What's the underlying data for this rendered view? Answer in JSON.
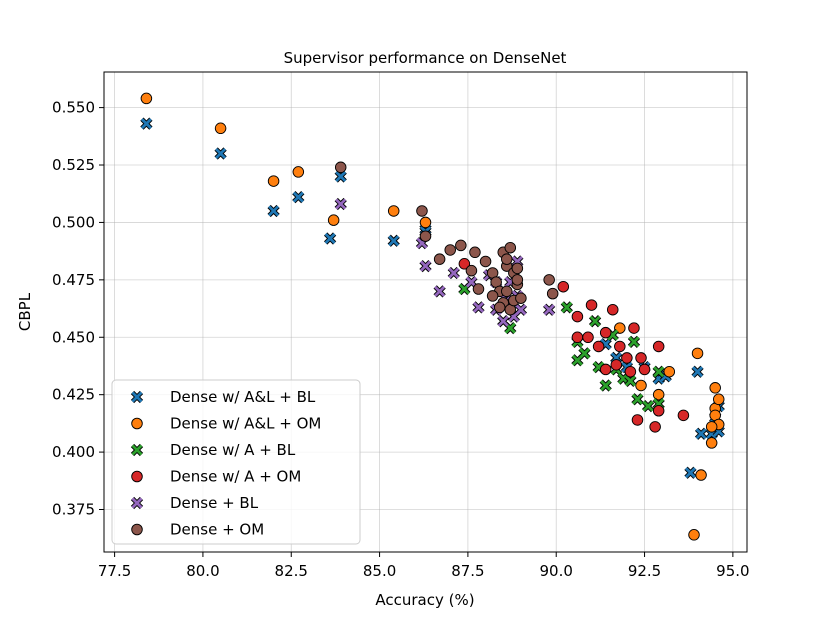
{
  "chart_data": {
    "type": "scatter",
    "title": "Supervisor performance on DenseNet",
    "xlabel": "Accuracy (%)",
    "ylabel": "CBPL",
    "xlim": [
      77.2,
      95.4
    ],
    "ylim": [
      0.3565,
      0.5655
    ],
    "xticks": [
      77.5,
      80.0,
      82.5,
      85.0,
      87.5,
      90.0,
      92.5,
      95.0
    ],
    "xtick_labels": [
      "77.5",
      "80.0",
      "82.5",
      "85.0",
      "87.5",
      "90.0",
      "92.5",
      "95.0"
    ],
    "yticks": [
      0.375,
      0.4,
      0.425,
      0.45,
      0.475,
      0.5,
      0.525,
      0.55
    ],
    "ytick_labels": [
      "0.375",
      "0.400",
      "0.425",
      "0.450",
      "0.475",
      "0.500",
      "0.525",
      "0.550"
    ],
    "grid": true,
    "legend_position": "lower-left",
    "series": [
      {
        "name": "Dense w/ A&L + BL",
        "marker": "x",
        "color": "#1f77b4",
        "points": [
          [
            78.4,
            0.543
          ],
          [
            80.5,
            0.53
          ],
          [
            82.0,
            0.505
          ],
          [
            82.7,
            0.511
          ],
          [
            83.6,
            0.493
          ],
          [
            83.9,
            0.52
          ],
          [
            85.4,
            0.492
          ],
          [
            86.3,
            0.497
          ],
          [
            86.3,
            0.496
          ],
          [
            91.4,
            0.447
          ],
          [
            91.7,
            0.441
          ],
          [
            92.0,
            0.437
          ],
          [
            92.5,
            0.437
          ],
          [
            92.9,
            0.432
          ],
          [
            93.1,
            0.433
          ],
          [
            93.8,
            0.391
          ],
          [
            94.0,
            0.435
          ],
          [
            94.1,
            0.408
          ],
          [
            94.4,
            0.408
          ],
          [
            94.5,
            0.415
          ],
          [
            94.6,
            0.409
          ],
          [
            94.6,
            0.42
          ]
        ]
      },
      {
        "name": "Dense w/ A&L + OM",
        "marker": "o",
        "color": "#ff7f0e",
        "points": [
          [
            78.4,
            0.554
          ],
          [
            80.5,
            0.541
          ],
          [
            82.0,
            0.518
          ],
          [
            82.7,
            0.522
          ],
          [
            83.7,
            0.501
          ],
          [
            85.4,
            0.505
          ],
          [
            86.3,
            0.5
          ],
          [
            91.8,
            0.454
          ],
          [
            92.4,
            0.429
          ],
          [
            92.9,
            0.425
          ],
          [
            93.2,
            0.435
          ],
          [
            93.9,
            0.364
          ],
          [
            94.0,
            0.443
          ],
          [
            94.1,
            0.39
          ],
          [
            94.4,
            0.404
          ],
          [
            94.5,
            0.428
          ],
          [
            94.5,
            0.419
          ],
          [
            94.5,
            0.416
          ],
          [
            94.6,
            0.423
          ],
          [
            94.6,
            0.412
          ],
          [
            94.4,
            0.411
          ]
        ]
      },
      {
        "name": "Dense w/ A + BL",
        "marker": "x",
        "color": "#2ca02c",
        "points": [
          [
            87.4,
            0.471
          ],
          [
            88.7,
            0.454
          ],
          [
            90.3,
            0.463
          ],
          [
            90.6,
            0.448
          ],
          [
            90.6,
            0.44
          ],
          [
            90.8,
            0.443
          ],
          [
            91.1,
            0.457
          ],
          [
            91.2,
            0.437
          ],
          [
            91.4,
            0.429
          ],
          [
            91.6,
            0.451
          ],
          [
            91.7,
            0.436
          ],
          [
            91.9,
            0.432
          ],
          [
            92.2,
            0.448
          ],
          [
            92.1,
            0.431
          ],
          [
            92.3,
            0.423
          ],
          [
            92.6,
            0.42
          ],
          [
            92.9,
            0.435
          ],
          [
            92.9,
            0.421
          ]
        ]
      },
      {
        "name": "Dense w/ A + OM",
        "marker": "o",
        "color": "#d62728",
        "points": [
          [
            87.4,
            0.482
          ],
          [
            90.2,
            0.472
          ],
          [
            90.6,
            0.459
          ],
          [
            90.6,
            0.45
          ],
          [
            90.9,
            0.45
          ],
          [
            91.0,
            0.464
          ],
          [
            91.2,
            0.446
          ],
          [
            91.4,
            0.452
          ],
          [
            91.4,
            0.436
          ],
          [
            91.6,
            0.462
          ],
          [
            91.7,
            0.438
          ],
          [
            91.8,
            0.446
          ],
          [
            92.0,
            0.441
          ],
          [
            92.1,
            0.435
          ],
          [
            92.2,
            0.454
          ],
          [
            92.3,
            0.414
          ],
          [
            92.4,
            0.441
          ],
          [
            92.5,
            0.436
          ],
          [
            92.8,
            0.411
          ],
          [
            92.9,
            0.446
          ],
          [
            92.9,
            0.418
          ],
          [
            93.6,
            0.416
          ]
        ]
      },
      {
        "name": "Dense + BL",
        "marker": "x",
        "color": "#9467bd",
        "points": [
          [
            83.9,
            0.508
          ],
          [
            86.2,
            0.491
          ],
          [
            86.3,
            0.481
          ],
          [
            86.7,
            0.47
          ],
          [
            87.1,
            0.478
          ],
          [
            87.6,
            0.474
          ],
          [
            87.8,
            0.463
          ],
          [
            88.1,
            0.477
          ],
          [
            88.3,
            0.462
          ],
          [
            88.5,
            0.457
          ],
          [
            88.6,
            0.466
          ],
          [
            88.7,
            0.474
          ],
          [
            88.8,
            0.459
          ],
          [
            88.9,
            0.468
          ],
          [
            89.0,
            0.462
          ],
          [
            89.8,
            0.462
          ],
          [
            88.3,
            0.474
          ],
          [
            88.9,
            0.483
          ]
        ]
      },
      {
        "name": "Dense + OM",
        "marker": "o",
        "color": "#8c564b",
        "points": [
          [
            83.9,
            0.524
          ],
          [
            86.2,
            0.505
          ],
          [
            86.3,
            0.494
          ],
          [
            86.7,
            0.484
          ],
          [
            87.0,
            0.488
          ],
          [
            87.3,
            0.49
          ],
          [
            87.6,
            0.479
          ],
          [
            87.7,
            0.487
          ],
          [
            87.8,
            0.471
          ],
          [
            88.0,
            0.483
          ],
          [
            88.2,
            0.478
          ],
          [
            88.3,
            0.474
          ],
          [
            88.4,
            0.47
          ],
          [
            88.5,
            0.487
          ],
          [
            88.5,
            0.465
          ],
          [
            88.6,
            0.481
          ],
          [
            88.6,
            0.47
          ],
          [
            88.7,
            0.489
          ],
          [
            88.7,
            0.462
          ],
          [
            88.8,
            0.478
          ],
          [
            88.8,
            0.466
          ],
          [
            88.9,
            0.473
          ],
          [
            88.9,
            0.48
          ],
          [
            89.0,
            0.467
          ],
          [
            89.8,
            0.475
          ],
          [
            89.9,
            0.469
          ],
          [
            88.2,
            0.468
          ],
          [
            88.4,
            0.463
          ],
          [
            88.6,
            0.484
          ],
          [
            88.9,
            0.475
          ]
        ]
      }
    ]
  }
}
